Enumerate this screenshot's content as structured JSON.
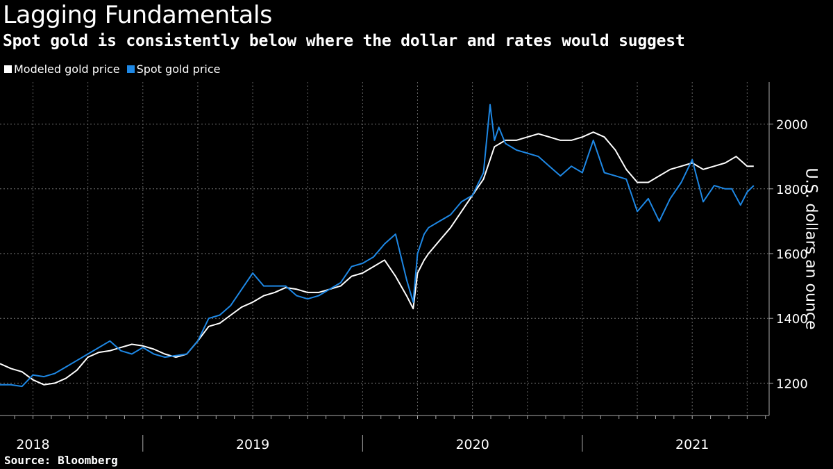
{
  "header": {
    "title": "Lagging Fundamentals",
    "subtitle": "Spot gold is consistently below where the dollar and rates would suggest"
  },
  "legend": {
    "items": [
      {
        "label": "Modeled gold price",
        "color": "#ffffff"
      },
      {
        "label": "Spot gold price",
        "color": "#1e88e5"
      }
    ]
  },
  "footer": {
    "source": "Source: Bloomberg"
  },
  "chart_data": {
    "type": "line",
    "title": "Lagging Fundamentals",
    "subtitle": "Spot gold is consistently below where the dollar and rates would suggest",
    "xlabel": "",
    "ylabel": "U.S. dollars an ounce",
    "ylim": [
      1100,
      2130
    ],
    "yticks": [
      1200,
      1400,
      1600,
      1800,
      2000
    ],
    "xlim": [
      2017.85,
      2021.35
    ],
    "xticks": [
      {
        "label": "2018",
        "pos": 2018.0
      },
      {
        "label": "2019",
        "pos": 2019.0
      },
      {
        "label": "2020",
        "pos": 2020.0
      },
      {
        "label": "2021",
        "pos": 2021.0
      }
    ],
    "grid": true,
    "legend_position": "top-left",
    "series": [
      {
        "name": "Modeled gold price",
        "color": "#ffffff",
        "x": [
          2017.85,
          2017.9,
          2017.95,
          2018.0,
          2018.05,
          2018.1,
          2018.15,
          2018.2,
          2018.25,
          2018.3,
          2018.35,
          2018.4,
          2018.45,
          2018.5,
          2018.55,
          2018.6,
          2018.65,
          2018.7,
          2018.75,
          2018.8,
          2018.85,
          2018.9,
          2018.95,
          2019.0,
          2019.05,
          2019.1,
          2019.15,
          2019.2,
          2019.25,
          2019.3,
          2019.35,
          2019.4,
          2019.45,
          2019.5,
          2019.55,
          2019.6,
          2019.65,
          2019.7,
          2019.73,
          2019.75,
          2019.78,
          2019.8,
          2019.85,
          2019.9,
          2019.95,
          2020.0,
          2020.05,
          2020.1,
          2020.15,
          2020.2,
          2020.25,
          2020.3,
          2020.35,
          2020.4,
          2020.45,
          2020.5,
          2020.55,
          2020.6,
          2020.65,
          2020.7,
          2020.75,
          2020.8,
          2020.85,
          2020.9,
          2020.95,
          2021.0,
          2021.05,
          2021.1,
          2021.15,
          2021.2,
          2021.25,
          2021.28
        ],
        "values": [
          1260,
          1245,
          1235,
          1210,
          1195,
          1200,
          1215,
          1240,
          1280,
          1295,
          1300,
          1310,
          1320,
          1315,
          1305,
          1290,
          1280,
          1290,
          1330,
          1375,
          1385,
          1410,
          1435,
          1450,
          1470,
          1480,
          1495,
          1490,
          1480,
          1480,
          1490,
          1500,
          1530,
          1540,
          1560,
          1580,
          1530,
          1470,
          1430,
          1540,
          1580,
          1600,
          1640,
          1680,
          1730,
          1780,
          1830,
          1930,
          1950,
          1950,
          1960,
          1970,
          1960,
          1950,
          1950,
          1960,
          1975,
          1960,
          1920,
          1860,
          1820,
          1820,
          1840,
          1860,
          1870,
          1880,
          1860,
          1870,
          1880,
          1900,
          1870,
          1870
        ]
      },
      {
        "name": "Spot gold price",
        "color": "#1e88e5",
        "x": [
          2017.85,
          2017.9,
          2017.95,
          2018.0,
          2018.05,
          2018.1,
          2018.15,
          2018.2,
          2018.25,
          2018.3,
          2018.35,
          2018.4,
          2018.45,
          2018.5,
          2018.55,
          2018.6,
          2018.65,
          2018.7,
          2018.75,
          2018.8,
          2018.85,
          2018.9,
          2018.95,
          2019.0,
          2019.05,
          2019.1,
          2019.15,
          2019.2,
          2019.25,
          2019.3,
          2019.35,
          2019.4,
          2019.45,
          2019.5,
          2019.55,
          2019.6,
          2019.65,
          2019.7,
          2019.73,
          2019.75,
          2019.78,
          2019.8,
          2019.85,
          2019.9,
          2019.95,
          2020.0,
          2020.05,
          2020.08,
          2020.1,
          2020.12,
          2020.15,
          2020.2,
          2020.25,
          2020.3,
          2020.35,
          2020.4,
          2020.45,
          2020.5,
          2020.55,
          2020.6,
          2020.65,
          2020.7,
          2020.75,
          2020.8,
          2020.85,
          2020.9,
          2020.95,
          2021.0,
          2021.05,
          2021.1,
          2021.15,
          2021.18,
          2021.22,
          2021.25,
          2021.28
        ],
        "values": [
          1195,
          1195,
          1190,
          1225,
          1220,
          1230,
          1250,
          1270,
          1290,
          1310,
          1330,
          1300,
          1290,
          1310,
          1290,
          1280,
          1285,
          1290,
          1330,
          1400,
          1410,
          1440,
          1490,
          1540,
          1500,
          1500,
          1500,
          1470,
          1460,
          1470,
          1490,
          1510,
          1560,
          1570,
          1590,
          1630,
          1660,
          1520,
          1450,
          1600,
          1660,
          1680,
          1700,
          1720,
          1760,
          1780,
          1850,
          2060,
          1950,
          1990,
          1940,
          1920,
          1910,
          1900,
          1870,
          1840,
          1870,
          1850,
          1950,
          1850,
          1840,
          1830,
          1730,
          1770,
          1700,
          1770,
          1820,
          1890,
          1760,
          1810,
          1800,
          1800,
          1750,
          1790,
          1810
        ]
      }
    ]
  }
}
